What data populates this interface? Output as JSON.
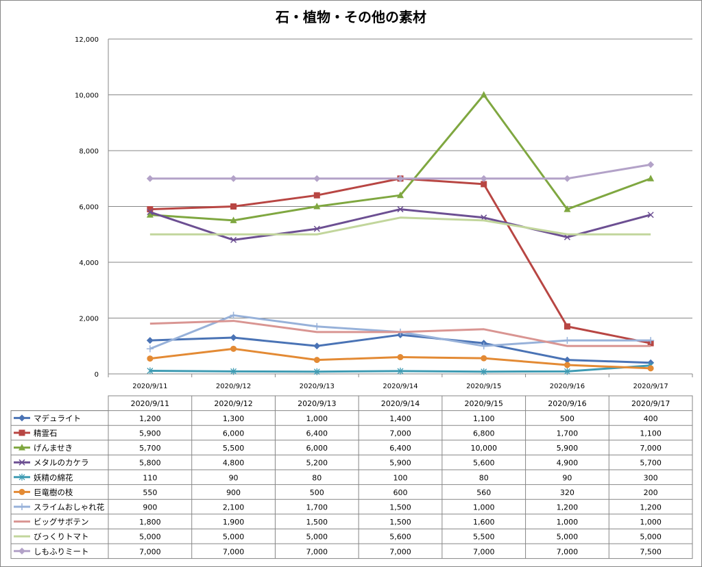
{
  "chart_data": {
    "type": "line",
    "title": "石・植物・その他の素材",
    "xlabel": "",
    "ylabel": "",
    "ylim": [
      0,
      12000
    ],
    "y_ticks": [
      "0",
      "2,000",
      "4,000",
      "6,000",
      "8,000",
      "10,000",
      "12,000"
    ],
    "grid": true,
    "legend": "data-table-below",
    "categories": [
      "2020/9/11",
      "2020/9/12",
      "2020/9/13",
      "2020/9/14",
      "2020/9/15",
      "2020/9/16",
      "2020/9/17"
    ],
    "series": [
      {
        "name": "マデュライト",
        "color": "#4a73b5",
        "marker": "diamond",
        "values": [
          1200,
          1300,
          1000,
          1400,
          1100,
          500,
          400
        ],
        "labels": [
          "1,200",
          "1,300",
          "1,000",
          "1,400",
          "1,100",
          "500",
          "400"
        ]
      },
      {
        "name": "精霊石",
        "color": "#b84643",
        "marker": "square",
        "values": [
          5900,
          6000,
          6400,
          7000,
          6800,
          1700,
          1100
        ],
        "labels": [
          "5,900",
          "6,000",
          "6,400",
          "7,000",
          "6,800",
          "1,700",
          "1,100"
        ]
      },
      {
        "name": "げんませき",
        "color": "#7fa740",
        "marker": "triangle",
        "values": [
          5700,
          5500,
          6000,
          6400,
          10000,
          5900,
          7000
        ],
        "labels": [
          "5,700",
          "5,500",
          "6,000",
          "6,400",
          "10,000",
          "5,900",
          "7,000"
        ]
      },
      {
        "name": "メタルのカケラ",
        "color": "#6c4f92",
        "marker": "x",
        "values": [
          5800,
          4800,
          5200,
          5900,
          5600,
          4900,
          5700
        ],
        "labels": [
          "5,800",
          "4,800",
          "5,200",
          "5,900",
          "5,600",
          "4,900",
          "5,700"
        ]
      },
      {
        "name": "妖精の綿花",
        "color": "#3e9bb3",
        "marker": "star",
        "values": [
          110,
          90,
          80,
          100,
          80,
          90,
          300
        ],
        "labels": [
          "110",
          "90",
          "80",
          "100",
          "80",
          "90",
          "300"
        ]
      },
      {
        "name": "巨竜樹の枝",
        "color": "#e38a34",
        "marker": "circle",
        "values": [
          550,
          900,
          500,
          600,
          560,
          320,
          200
        ],
        "labels": [
          "550",
          "900",
          "500",
          "600",
          "560",
          "320",
          "200"
        ]
      },
      {
        "name": "スライムおしゃれ花",
        "color": "#97b1d9",
        "marker": "plus",
        "values": [
          900,
          2100,
          1700,
          1500,
          1000,
          1200,
          1200
        ],
        "labels": [
          "900",
          "2,100",
          "1,700",
          "1,500",
          "1,000",
          "1,200",
          "1,200"
        ]
      },
      {
        "name": "ビッグサボテン",
        "color": "#d99592",
        "marker": "none",
        "values": [
          1800,
          1900,
          1500,
          1500,
          1600,
          1000,
          1000
        ],
        "labels": [
          "1,800",
          "1,900",
          "1,500",
          "1,500",
          "1,600",
          "1,000",
          "1,000"
        ]
      },
      {
        "name": "びっくりトマト",
        "color": "#c2d69c",
        "marker": "none",
        "values": [
          5000,
          5000,
          5000,
          5600,
          5500,
          5000,
          5000
        ],
        "labels": [
          "5,000",
          "5,000",
          "5,000",
          "5,600",
          "5,500",
          "5,000",
          "5,000"
        ]
      },
      {
        "name": "しもふりミート",
        "color": "#b3a2c8",
        "marker": "diamond",
        "values": [
          7000,
          7000,
          7000,
          7000,
          7000,
          7000,
          7500
        ],
        "labels": [
          "7,000",
          "7,000",
          "7,000",
          "7,000",
          "7,000",
          "7,000",
          "7,500"
        ]
      }
    ]
  }
}
